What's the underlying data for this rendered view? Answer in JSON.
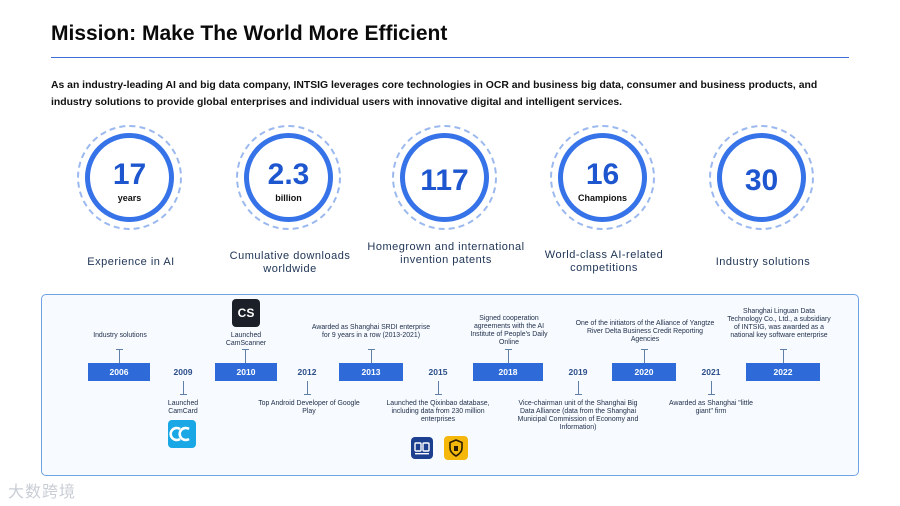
{
  "header": {
    "title": "Mission: Make The World More Efficient",
    "intro": "As an industry-leading AI and big data company, INTSIG leverages core technologies in OCR and business big data, consumer and business products, and industry solutions to provide global enterprises and individual users with innovative digital and intelligent services."
  },
  "stats": [
    {
      "value": "17",
      "unit": "years",
      "label": "Experience in AI"
    },
    {
      "value": "2.3",
      "unit": "billion",
      "label": "Cumulative downloads worldwide"
    },
    {
      "value": "117",
      "unit": "",
      "label": "Homegrown and international invention patents"
    },
    {
      "value": "16",
      "unit": "Champions",
      "label": "World-class AI-related competitions"
    },
    {
      "value": "30",
      "unit": "",
      "label": "Industry solutions"
    }
  ],
  "timeline": {
    "years": [
      "2006",
      "2009",
      "2010",
      "2012",
      "2013",
      "2015",
      "2018",
      "2019",
      "2020",
      "2021",
      "2022"
    ],
    "events": [
      "Industry solutions",
      "Launched CamCard",
      "Launched CamScanner",
      "Top Android Developer of Google Play",
      "Awarded as Shanghai SRDI enterprise for 9 years in a row (2013-2021)",
      "Launched the Qixinbao database, including data from 230 million enterprises",
      "Signed cooperation agreements with the AI Institute of People's Daily Online",
      "Vice-chairman unit of the Shanghai Big Data Alliance (data from the Shanghai Municipal Commission of Economy and Information)",
      "One of the initiators of the Alliance of Yangtze River Delta Business Credit Reporting Agencies",
      "Awarded as Shanghai \"little giant\" firm",
      "Shanghai Linguan Data Technology Co., Ltd., a subsidiary of INTSIG, was awarded as a national key software enterprise"
    ]
  },
  "icons": {
    "camscanner": "CS",
    "camcard": "camcard-icon",
    "qixinbao": "qixinbao-icon",
    "shield": "shield-icon"
  },
  "watermark": "大数跨境",
  "colors": {
    "accent": "#2e6bd8",
    "ring": "#3672e8",
    "panel_border": "#6ea4e6"
  }
}
